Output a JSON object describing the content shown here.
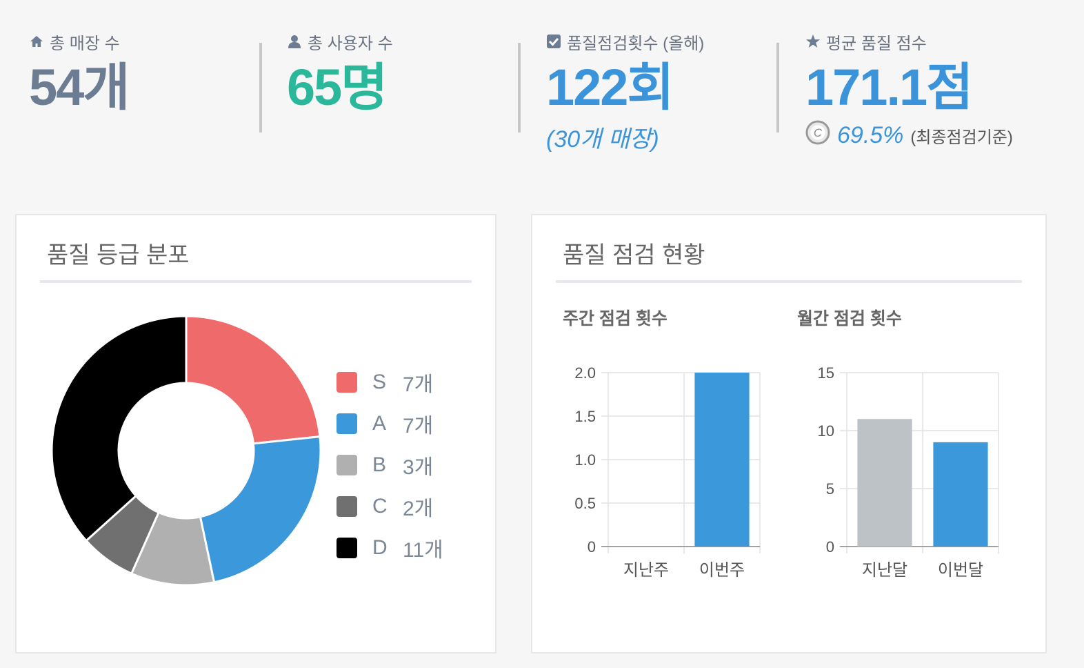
{
  "stats": [
    {
      "label": "총 매장 수",
      "icon": "home-icon",
      "value": "54개",
      "color": "#6b7c93"
    },
    {
      "label": "총 사용자 수",
      "icon": "user-icon",
      "value": "65명",
      "color": "#2bb89a"
    },
    {
      "label": "품질점검횟수 (올해)",
      "icon": "checkbox-icon",
      "value": "122회",
      "color": "#3b94da",
      "sub": "(30개 매장)"
    },
    {
      "label": "평균 품질 점수",
      "icon": "star-icon",
      "value": "171.1점",
      "color": "#3b94da",
      "sub_value": "69.5%",
      "sub_note": "(최종점검기준)",
      "sub_icon": "copyright-icon"
    }
  ],
  "grade_card": {
    "title": "품질 등급 분포",
    "legend_unit": "개"
  },
  "inspection_card": {
    "title": "품질 점검 현황",
    "weekly_title": "주간 점검 횟수",
    "monthly_title": "월간 점검 횟수"
  },
  "chart_data": [
    {
      "type": "pie",
      "variant": "donut",
      "labels": [
        "S",
        "A",
        "B",
        "C",
        "D"
      ],
      "values": [
        7,
        7,
        3,
        2,
        11
      ],
      "value_labels": [
        "7개",
        "7개",
        "3개",
        "2개",
        "11개"
      ],
      "colors": [
        "#ef6b6b",
        "#3b99db",
        "#b0b0b0",
        "#707070",
        "#000000"
      ],
      "legend": "right"
    },
    {
      "type": "bar",
      "categories": [
        "지난주",
        "이번주"
      ],
      "values": [
        0,
        2
      ],
      "colors": [
        "#bdc2c7",
        "#3b99db"
      ],
      "ylim": [
        0,
        2
      ],
      "yticks": [
        "0",
        "0.5",
        "1.0",
        "1.5",
        "2.0"
      ],
      "ytick_values": [
        0,
        0.5,
        1,
        1.5,
        2
      ],
      "grid": true
    },
    {
      "type": "bar",
      "categories": [
        "지난달",
        "이번달"
      ],
      "values": [
        11,
        9
      ],
      "colors": [
        "#bdc2c7",
        "#3b99db"
      ],
      "ylim": [
        0,
        15
      ],
      "yticks": [
        "0",
        "5",
        "10",
        "15"
      ],
      "ytick_values": [
        0,
        5,
        10,
        15
      ],
      "grid": true
    }
  ]
}
